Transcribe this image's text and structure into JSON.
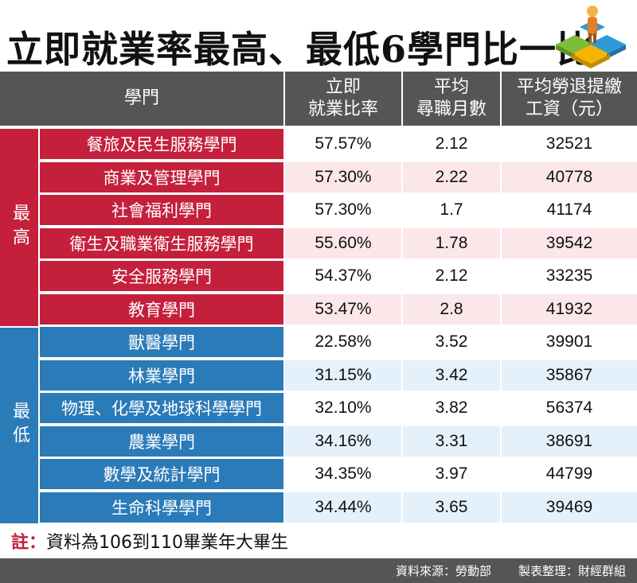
{
  "title": "立即就業率最高、最低6學門比一比",
  "headers": {
    "field": "學門",
    "rate_line1": "立即",
    "rate_line2": "就業比率",
    "months_line1": "平均",
    "months_line2": "尋職月數",
    "wage_line1": "平均勞退提繳",
    "wage_line2": "工資（元）"
  },
  "groups": {
    "highest": "最高",
    "lowest": "最低"
  },
  "colors": {
    "highest_label": "#c4203c",
    "highest_row_alt": "#fbe6ea",
    "lowest_label": "#2b7bb9",
    "lowest_row_alt": "#e4f0fa",
    "header": "#555555"
  },
  "chart_data": {
    "type": "table",
    "title": "立即就業率最高、最低6學門比一比",
    "columns": [
      "學門",
      "立即就業比率",
      "平均尋職月數",
      "平均勞退提繳工資（元）"
    ],
    "rows": [
      {
        "group": "最高",
        "field": "餐旅及民生服務學門",
        "rate": "57.57%",
        "months": "2.12",
        "wage": "32521"
      },
      {
        "group": "最高",
        "field": "商業及管理學門",
        "rate": "57.30%",
        "months": "2.22",
        "wage": "40778"
      },
      {
        "group": "最高",
        "field": "社會福利學門",
        "rate": "57.30%",
        "months": "1.7",
        "wage": "41174"
      },
      {
        "group": "最高",
        "field": "衛生及職業衛生服務學門",
        "rate": "55.60%",
        "months": "1.78",
        "wage": "39542"
      },
      {
        "group": "最高",
        "field": "安全服務學門",
        "rate": "54.37%",
        "months": "2.12",
        "wage": "33235"
      },
      {
        "group": "最高",
        "field": "教育學門",
        "rate": "53.47%",
        "months": "2.8",
        "wage": "41932"
      },
      {
        "group": "最低",
        "field": "獸醫學門",
        "rate": "22.58%",
        "months": "3.52",
        "wage": "39901"
      },
      {
        "group": "最低",
        "field": "林業學門",
        "rate": "31.15%",
        "months": "3.42",
        "wage": "35867"
      },
      {
        "group": "最低",
        "field": "物理、化學及地球科學學門",
        "rate": "32.10%",
        "months": "3.82",
        "wage": "56374"
      },
      {
        "group": "最低",
        "field": "農業學門",
        "rate": "34.16%",
        "months": "3.31",
        "wage": "38691"
      },
      {
        "group": "最低",
        "field": "數學及統計學門",
        "rate": "34.35%",
        "months": "3.97",
        "wage": "44799"
      },
      {
        "group": "最低",
        "field": "生命科學學門",
        "rate": "34.44%",
        "months": "3.65",
        "wage": "39469"
      }
    ]
  },
  "note": {
    "label": "註：",
    "text": "資料為106到110畢業年大畢生"
  },
  "footer": {
    "source": "資料來源：勞動部",
    "editor": "製表整理：財經群組"
  }
}
